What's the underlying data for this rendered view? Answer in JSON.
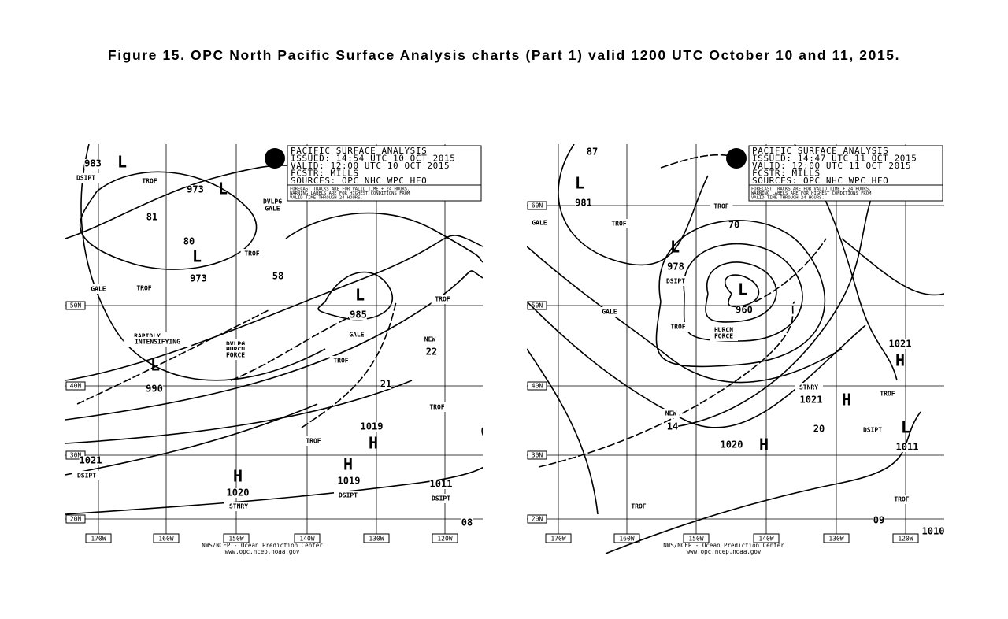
{
  "caption": "Figure 15.  OPC North Pacific Surface Analysis charts (Part 1) valid 1200 UTC October 10 and 11, 2015.",
  "maps": [
    {
      "header": [
        "PACIFIC SURFACE ANALYSIS",
        "ISSUED: 14:54 UTC 10 OCT 2015",
        "VALID:  12:00 UTC 10 OCT 2015",
        "FCSTR:  MILLS",
        "SOURCES: OPC NHC WPC HFO"
      ],
      "note": [
        "FORECAST TRACKS ARE FOR VALID TIME + 24 HOURS.",
        "WARNING LABELS ARE FOR HIGHEST CONDITIONS FROM",
        "VALID TIME THROUGH 24 HOURS."
      ],
      "longitudes": [
        "170W",
        "160W",
        "150W",
        "140W",
        "130W",
        "120W"
      ],
      "latitudes": [
        "50N",
        "40N",
        "30N",
        "20N"
      ],
      "labels": [
        "983",
        "DSIPT",
        "L",
        "TROF",
        "973",
        "L",
        "81",
        "80",
        "L",
        "TROF",
        "973",
        "GALE",
        "TROF",
        "DVLPG",
        "GALE",
        "58",
        "L",
        "985",
        "GALE",
        "RAPIDLY",
        "INTENSIFYING",
        "DVLPG",
        "HURCN",
        "FORCE",
        "L",
        "990",
        "TROF",
        "NEW",
        "22",
        "21",
        "1019",
        "H",
        "TROF",
        "TROF",
        "TROF",
        "1021",
        "DSIPT",
        "H",
        "1020",
        "STNRY",
        "H",
        "1019",
        "DSIPT",
        "1011",
        "DSIPT",
        "08"
      ],
      "credit": [
        "NWS/NCEP - Ocean Prediction Center",
        "www.opc.ncep.noaa.gov"
      ]
    },
    {
      "header": [
        "PACIFIC SURFACE ANALYSIS",
        "ISSUED: 14:47 UTC 11 OCT 2015",
        "VALID:  12:00 UTC 11 OCT 2015",
        "FCSTR:  MILLS",
        "SOURCES: OPC NHC WPC HFO"
      ],
      "note": [
        "FORECAST TRACKS ARE FOR VALID TIME + 24 HOURS.",
        "WARNING LABELS ARE FOR HIGHEST CONDITIONS FROM",
        "VALID TIME THROUGH 24 HOURS."
      ],
      "longitudes": [
        "170W",
        "160W",
        "150W",
        "140W",
        "130W",
        "120W"
      ],
      "latitudes": [
        "60N",
        "50N",
        "40N",
        "30N",
        "20N"
      ],
      "labels": [
        "87",
        "L",
        "981",
        "TROF",
        "GALE",
        "70",
        "L",
        "978",
        "DSIPT",
        "TROF",
        "L",
        "960",
        "GALE",
        "TROF",
        "HURCN",
        "FORCE",
        "1021",
        "H",
        "STNRY",
        "1021",
        "H",
        "TROF",
        "DSIPT",
        "L",
        "1011",
        "NEW",
        "14",
        "1020",
        "H",
        "20",
        "TROF",
        "TROF",
        "09",
        "1010"
      ],
      "credit": [
        "NWS/NCEP - Ocean Prediction Center",
        "www.opc.ncep.noaa.gov"
      ]
    }
  ]
}
